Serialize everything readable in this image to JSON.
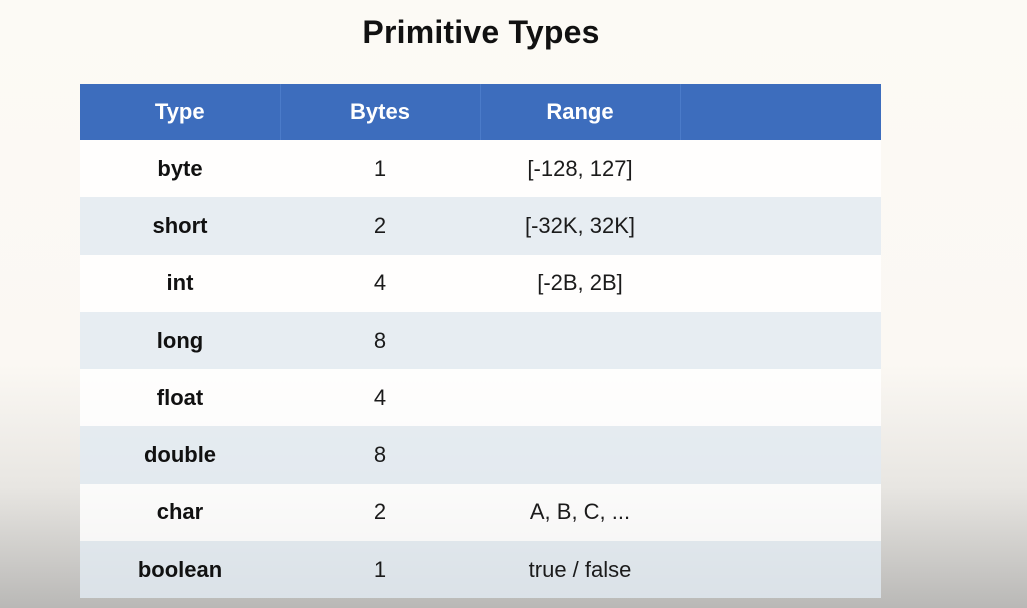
{
  "title": "Primitive Types",
  "table": {
    "headers": [
      "Type",
      "Bytes",
      "Range",
      ""
    ],
    "rows": [
      {
        "type": "byte",
        "bytes": "1",
        "range": "[-128, 127]"
      },
      {
        "type": "short",
        "bytes": "2",
        "range": "[-32K, 32K]"
      },
      {
        "type": "int",
        "bytes": "4",
        "range": "[-2B, 2B]"
      },
      {
        "type": "long",
        "bytes": "8",
        "range": ""
      },
      {
        "type": "float",
        "bytes": "4",
        "range": ""
      },
      {
        "type": "double",
        "bytes": "8",
        "range": ""
      },
      {
        "type": "char",
        "bytes": "2",
        "range": "A, B, C, ..."
      },
      {
        "type": "boolean",
        "bytes": "1",
        "range": "true / false"
      }
    ]
  },
  "colors": {
    "header_bg": "#3d6dbd",
    "header_text": "#ffffff",
    "row_odd": "#ffffff",
    "row_even": "#e2eaf2"
  }
}
